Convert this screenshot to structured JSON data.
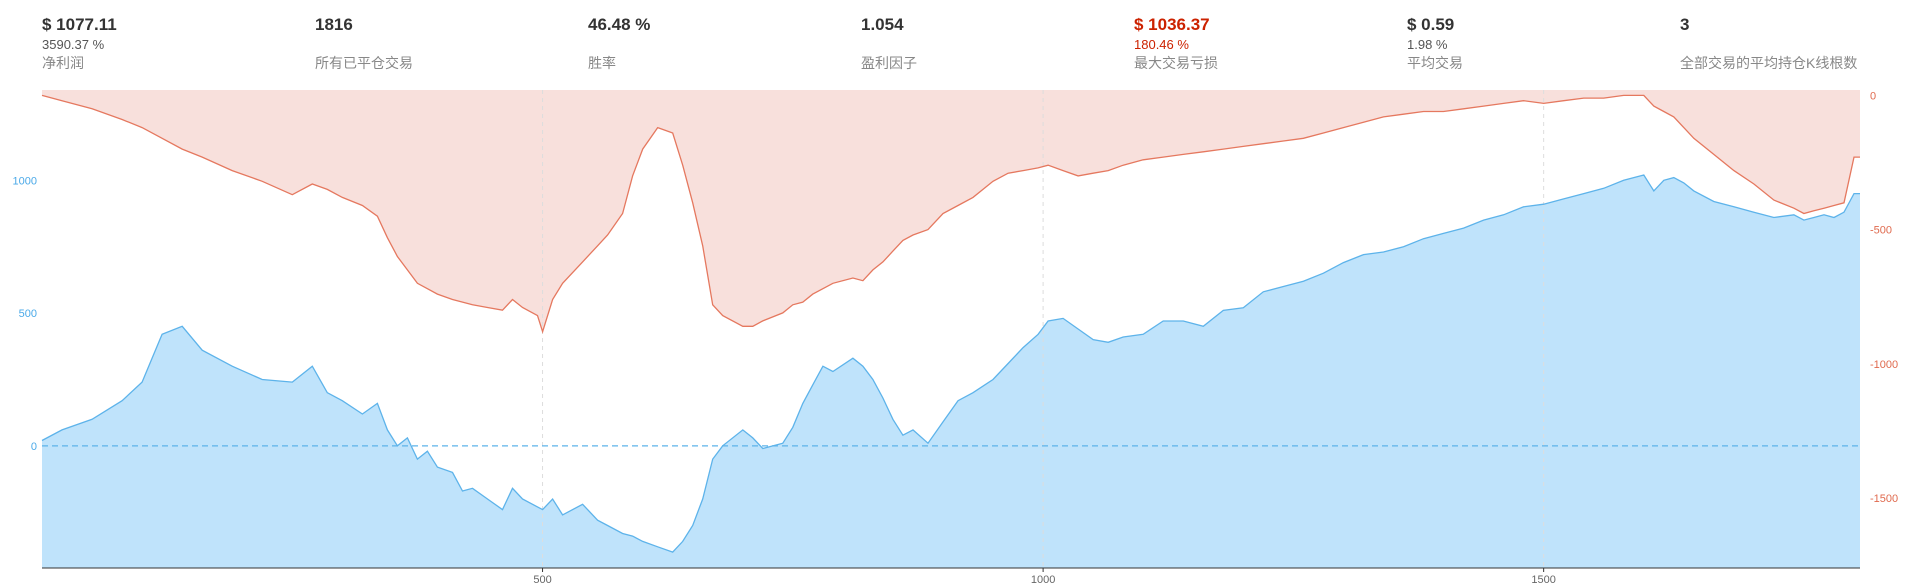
{
  "stats": [
    {
      "value": "$ 1077.11",
      "sub": "3590.37 %",
      "label": "净利润",
      "negative": false
    },
    {
      "value": "1816",
      "sub": "",
      "label": "所有已平仓交易",
      "negative": false
    },
    {
      "value": "46.48 %",
      "sub": "",
      "label": "胜率",
      "negative": false
    },
    {
      "value": "1.054",
      "sub": "",
      "label": "盈利因子",
      "negative": false
    },
    {
      "value": "$ 1036.37",
      "sub": "180.46 %",
      "label": "最大交易亏损",
      "negative": true
    },
    {
      "value": "$ 0.59",
      "sub": "1.98 %",
      "label": "平均交易",
      "negative": false
    },
    {
      "value": "3",
      "sub": "",
      "label": "全部交易的平均持仓K线根数",
      "negative": false
    }
  ],
  "colors": {
    "equity_line": "#5db3ea",
    "equity_fill": "#bfe3fb",
    "drawdown_line": "#e5785f",
    "drawdown_fill": "#f8e0dc",
    "left_axis": "#4aa9e8",
    "right_axis": "#e06a4e",
    "zero_line": "#5db3ea",
    "grid": "#dddddd"
  },
  "chart_data": {
    "type": "area",
    "x_ticks": [
      "500",
      "1000",
      "1500"
    ],
    "x_tick_values": [
      500,
      1000,
      1500
    ],
    "xlim": [
      0,
      1816
    ],
    "grid": "vertical dashed at x ticks",
    "series": [
      {
        "axis": "left",
        "ylim": [
          -460,
          1340
        ],
        "y_ticks": [
          "0",
          "500",
          "1000"
        ],
        "y_tick_values": [
          0,
          500,
          1000
        ],
        "points": [
          [
            0,
            20
          ],
          [
            20,
            60
          ],
          [
            50,
            100
          ],
          [
            80,
            170
          ],
          [
            100,
            240
          ],
          [
            120,
            420
          ],
          [
            140,
            450
          ],
          [
            160,
            360
          ],
          [
            190,
            300
          ],
          [
            220,
            250
          ],
          [
            250,
            240
          ],
          [
            270,
            300
          ],
          [
            285,
            200
          ],
          [
            300,
            170
          ],
          [
            320,
            120
          ],
          [
            335,
            160
          ],
          [
            345,
            60
          ],
          [
            355,
            0
          ],
          [
            365,
            30
          ],
          [
            375,
            -50
          ],
          [
            385,
            -20
          ],
          [
            395,
            -80
          ],
          [
            410,
            -100
          ],
          [
            420,
            -170
          ],
          [
            430,
            -160
          ],
          [
            445,
            -200
          ],
          [
            460,
            -240
          ],
          [
            470,
            -160
          ],
          [
            480,
            -200
          ],
          [
            495,
            -230
          ],
          [
            500,
            -240
          ],
          [
            510,
            -200
          ],
          [
            520,
            -260
          ],
          [
            540,
            -220
          ],
          [
            555,
            -280
          ],
          [
            565,
            -300
          ],
          [
            580,
            -330
          ],
          [
            590,
            -340
          ],
          [
            600,
            -360
          ],
          [
            615,
            -380
          ],
          [
            630,
            -400
          ],
          [
            640,
            -360
          ],
          [
            650,
            -300
          ],
          [
            660,
            -200
          ],
          [
            670,
            -50
          ],
          [
            680,
            0
          ],
          [
            700,
            60
          ],
          [
            710,
            30
          ],
          [
            720,
            -10
          ],
          [
            740,
            10
          ],
          [
            750,
            70
          ],
          [
            760,
            160
          ],
          [
            770,
            230
          ],
          [
            780,
            300
          ],
          [
            790,
            280
          ],
          [
            810,
            330
          ],
          [
            820,
            300
          ],
          [
            830,
            250
          ],
          [
            840,
            180
          ],
          [
            850,
            100
          ],
          [
            860,
            40
          ],
          [
            870,
            60
          ],
          [
            885,
            10
          ],
          [
            900,
            90
          ],
          [
            915,
            170
          ],
          [
            930,
            200
          ],
          [
            950,
            250
          ],
          [
            965,
            310
          ],
          [
            980,
            370
          ],
          [
            995,
            420
          ],
          [
            1005,
            470
          ],
          [
            1020,
            480
          ],
          [
            1035,
            440
          ],
          [
            1050,
            400
          ],
          [
            1065,
            390
          ],
          [
            1080,
            410
          ],
          [
            1100,
            420
          ],
          [
            1120,
            470
          ],
          [
            1140,
            470
          ],
          [
            1160,
            450
          ],
          [
            1180,
            510
          ],
          [
            1200,
            520
          ],
          [
            1220,
            580
          ],
          [
            1240,
            600
          ],
          [
            1260,
            620
          ],
          [
            1280,
            650
          ],
          [
            1300,
            690
          ],
          [
            1320,
            720
          ],
          [
            1340,
            730
          ],
          [
            1360,
            750
          ],
          [
            1380,
            780
          ],
          [
            1400,
            800
          ],
          [
            1420,
            820
          ],
          [
            1440,
            850
          ],
          [
            1460,
            870
          ],
          [
            1480,
            900
          ],
          [
            1500,
            910
          ],
          [
            1520,
            930
          ],
          [
            1540,
            950
          ],
          [
            1560,
            970
          ],
          [
            1580,
            1000
          ],
          [
            1600,
            1020
          ],
          [
            1610,
            960
          ],
          [
            1620,
            1000
          ],
          [
            1630,
            1010
          ],
          [
            1640,
            990
          ],
          [
            1650,
            960
          ],
          [
            1670,
            920
          ],
          [
            1690,
            900
          ],
          [
            1710,
            880
          ],
          [
            1730,
            860
          ],
          [
            1750,
            870
          ],
          [
            1760,
            850
          ],
          [
            1770,
            860
          ],
          [
            1780,
            870
          ],
          [
            1790,
            860
          ],
          [
            1800,
            880
          ],
          [
            1810,
            950
          ],
          [
            1816,
            950
          ]
        ]
      },
      {
        "axis": "right",
        "ylim": [
          -1760,
          20
        ],
        "y_ticks": [
          "0",
          "-500",
          "-1000",
          "-1500"
        ],
        "y_tick_values": [
          0,
          -500,
          -1000,
          -1500
        ],
        "points": [
          [
            0,
            0
          ],
          [
            20,
            -20
          ],
          [
            50,
            -50
          ],
          [
            80,
            -90
          ],
          [
            100,
            -120
          ],
          [
            120,
            -160
          ],
          [
            140,
            -200
          ],
          [
            160,
            -230
          ],
          [
            190,
            -280
          ],
          [
            220,
            -320
          ],
          [
            250,
            -370
          ],
          [
            270,
            -330
          ],
          [
            285,
            -350
          ],
          [
            300,
            -380
          ],
          [
            320,
            -410
          ],
          [
            335,
            -450
          ],
          [
            345,
            -530
          ],
          [
            355,
            -600
          ],
          [
            365,
            -650
          ],
          [
            375,
            -700
          ],
          [
            385,
            -720
          ],
          [
            395,
            -740
          ],
          [
            410,
            -760
          ],
          [
            420,
            -770
          ],
          [
            430,
            -780
          ],
          [
            445,
            -790
          ],
          [
            460,
            -800
          ],
          [
            470,
            -760
          ],
          [
            480,
            -790
          ],
          [
            495,
            -820
          ],
          [
            500,
            -880
          ],
          [
            510,
            -760
          ],
          [
            520,
            -700
          ],
          [
            540,
            -620
          ],
          [
            555,
            -560
          ],
          [
            565,
            -520
          ],
          [
            580,
            -440
          ],
          [
            590,
            -300
          ],
          [
            600,
            -200
          ],
          [
            615,
            -120
          ],
          [
            630,
            -140
          ],
          [
            640,
            -260
          ],
          [
            650,
            -400
          ],
          [
            660,
            -560
          ],
          [
            670,
            -780
          ],
          [
            680,
            -820
          ],
          [
            700,
            -860
          ],
          [
            710,
            -860
          ],
          [
            720,
            -840
          ],
          [
            740,
            -810
          ],
          [
            750,
            -780
          ],
          [
            760,
            -770
          ],
          [
            770,
            -740
          ],
          [
            780,
            -720
          ],
          [
            790,
            -700
          ],
          [
            810,
            -680
          ],
          [
            820,
            -690
          ],
          [
            830,
            -650
          ],
          [
            840,
            -620
          ],
          [
            850,
            -580
          ],
          [
            860,
            -540
          ],
          [
            870,
            -520
          ],
          [
            885,
            -500
          ],
          [
            900,
            -440
          ],
          [
            915,
            -410
          ],
          [
            930,
            -380
          ],
          [
            950,
            -320
          ],
          [
            965,
            -290
          ],
          [
            980,
            -280
          ],
          [
            995,
            -270
          ],
          [
            1005,
            -260
          ],
          [
            1020,
            -280
          ],
          [
            1035,
            -300
          ],
          [
            1050,
            -290
          ],
          [
            1065,
            -280
          ],
          [
            1080,
            -260
          ],
          [
            1100,
            -240
          ],
          [
            1120,
            -230
          ],
          [
            1140,
            -220
          ],
          [
            1160,
            -210
          ],
          [
            1180,
            -200
          ],
          [
            1200,
            -190
          ],
          [
            1220,
            -180
          ],
          [
            1240,
            -170
          ],
          [
            1260,
            -160
          ],
          [
            1280,
            -140
          ],
          [
            1300,
            -120
          ],
          [
            1320,
            -100
          ],
          [
            1340,
            -80
          ],
          [
            1360,
            -70
          ],
          [
            1380,
            -60
          ],
          [
            1400,
            -60
          ],
          [
            1420,
            -50
          ],
          [
            1440,
            -40
          ],
          [
            1460,
            -30
          ],
          [
            1480,
            -20
          ],
          [
            1500,
            -30
          ],
          [
            1520,
            -20
          ],
          [
            1540,
            -10
          ],
          [
            1560,
            -10
          ],
          [
            1580,
            0
          ],
          [
            1600,
            0
          ],
          [
            1610,
            -40
          ],
          [
            1620,
            -60
          ],
          [
            1630,
            -80
          ],
          [
            1640,
            -120
          ],
          [
            1650,
            -160
          ],
          [
            1670,
            -220
          ],
          [
            1690,
            -280
          ],
          [
            1710,
            -330
          ],
          [
            1730,
            -390
          ],
          [
            1750,
            -420
          ],
          [
            1760,
            -440
          ],
          [
            1770,
            -430
          ],
          [
            1780,
            -420
          ],
          [
            1790,
            -410
          ],
          [
            1800,
            -400
          ],
          [
            1810,
            -230
          ],
          [
            1816,
            -230
          ]
        ]
      }
    ]
  }
}
